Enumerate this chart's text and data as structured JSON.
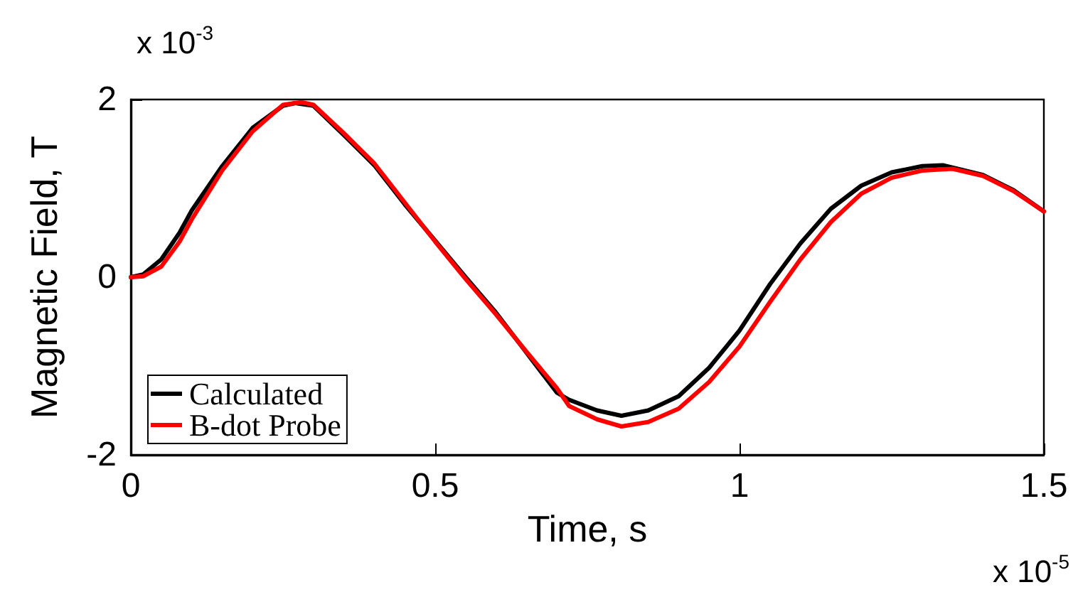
{
  "chart_data": {
    "type": "line",
    "xlabel": "Time, s",
    "ylabel": "Magnetic Field, T",
    "annotations": [
      "x 10$^{-3}$",
      "x 10$^{-5}$"
    ],
    "xlim": [
      0,
      1.5
    ],
    "xticks": [
      0,
      0.5,
      1,
      1.5
    ],
    "ylim": [
      -2,
      2
    ],
    "yticks": [
      -2,
      0,
      2
    ],
    "grid": false,
    "legend": "bottom left",
    "line_style": "solid",
    "marker": "none",
    "series": [
      {
        "name": "Calculated",
        "color": "#000000",
        "x": [
          0,
          0.02,
          0.05,
          0.08,
          0.1,
          0.15,
          0.2,
          0.25,
          0.27,
          0.3,
          0.35,
          0.4,
          0.45,
          0.5,
          0.55,
          0.6,
          0.65,
          0.7,
          0.72,
          0.766,
          0.806,
          0.85,
          0.9,
          0.95,
          1.0,
          1.05,
          1.1,
          1.15,
          1.2,
          1.25,
          1.3,
          1.334,
          1.4,
          1.45,
          1.5
        ],
        "values": [
          0,
          0.03,
          0.2,
          0.5,
          0.75,
          1.25,
          1.68,
          1.93,
          1.96,
          1.93,
          1.6,
          1.26,
          0.82,
          0.41,
          0,
          -0.4,
          -0.85,
          -1.3,
          -1.38,
          -1.5,
          -1.56,
          -1.5,
          -1.34,
          -1.02,
          -0.6,
          -0.08,
          0.38,
          0.77,
          1.03,
          1.18,
          1.25,
          1.26,
          1.15,
          0.98,
          0.74
        ]
      },
      {
        "name": "B-dot Probe",
        "color": "#ff0000",
        "x": [
          0,
          0.02,
          0.05,
          0.08,
          0.1,
          0.15,
          0.2,
          0.25,
          0.28,
          0.3,
          0.35,
          0.4,
          0.45,
          0.5,
          0.55,
          0.6,
          0.65,
          0.7,
          0.72,
          0.766,
          0.806,
          0.85,
          0.9,
          0.95,
          1.0,
          1.05,
          1.1,
          1.15,
          1.2,
          1.25,
          1.3,
          1.35,
          1.4,
          1.45,
          1.5
        ],
        "values": [
          0,
          0.01,
          0.12,
          0.4,
          0.65,
          1.2,
          1.64,
          1.94,
          1.97,
          1.94,
          1.62,
          1.28,
          0.84,
          0.4,
          -0.02,
          -0.42,
          -0.84,
          -1.25,
          -1.45,
          -1.6,
          -1.68,
          -1.63,
          -1.48,
          -1.18,
          -0.78,
          -0.28,
          0.2,
          0.62,
          0.94,
          1.12,
          1.2,
          1.22,
          1.14,
          0.97,
          0.74
        ]
      }
    ]
  }
}
